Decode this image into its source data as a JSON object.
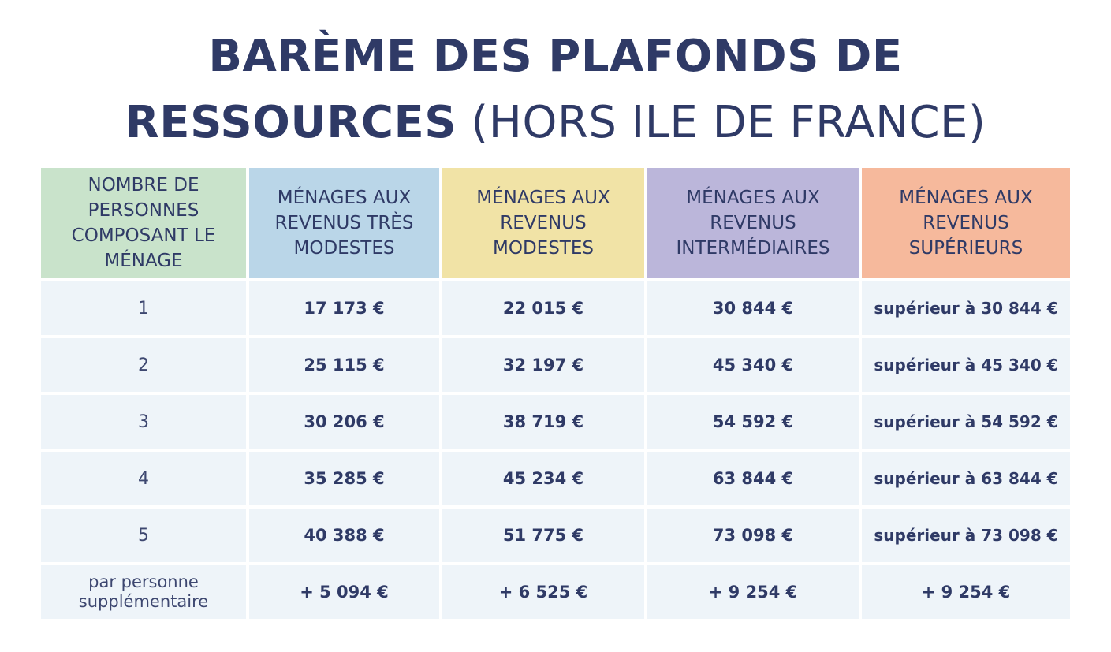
{
  "title": {
    "line1": "BARÈME DES PLAFONDS DE",
    "line2_bold": "RESSOURCES",
    "line2_normal": "(HORS ILE DE FRANCE)"
  },
  "table": {
    "headers": [
      "NOMBRE DE PERSONNES COMPOSANT LE MÉNAGE",
      "MÉNAGES AUX REVENUS TRÈS MODESTES",
      "MÉNAGES AUX REVENUS MODESTES",
      "MÉNAGES AUX REVENUS INTERMÉDIAIRES",
      "MÉNAGES AUX REVENUS SUPÉRIEURS"
    ],
    "header_colors": [
      "#c9e3cb",
      "#bad6e8",
      "#f1e3a6",
      "#bbb6da",
      "#f6b99c"
    ],
    "rows": [
      [
        "1",
        "17 173 €",
        "22 015 €",
        "30 844 €",
        "supérieur à 30 844 €"
      ],
      [
        "2",
        "25 115 €",
        "32 197 €",
        "45 340 €",
        "supérieur à 45 340 €"
      ],
      [
        "3",
        "30 206 €",
        "38 719 €",
        "54 592 €",
        "supérieur à 54 592 €"
      ],
      [
        "4",
        "35 285 €",
        "45 234 €",
        "63 844 €",
        "supérieur à 63 844 €"
      ],
      [
        "5",
        "40 388 €",
        "51 775 €",
        "73 098 €",
        "supérieur à 73 098 €"
      ],
      [
        "par personne supplémentaire",
        "+ 5 094 €",
        "+ 6 525 €",
        "+ 9 254 €",
        "+ 9 254 €"
      ]
    ]
  }
}
